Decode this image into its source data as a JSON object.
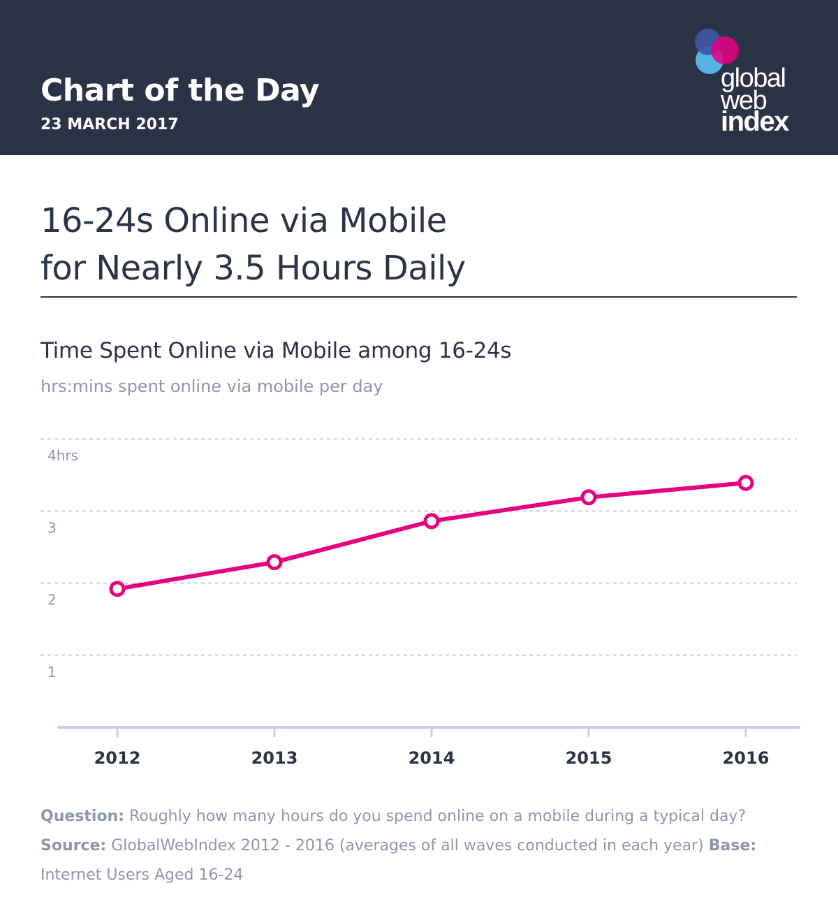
{
  "header": {
    "title": "Chart of the Day",
    "date": "23 MARCH 2017",
    "logo_lines": [
      "global",
      "web",
      "index"
    ],
    "background": "#2a3446"
  },
  "headline": {
    "line1": "16-24s Online via Mobile",
    "line2": "for Nearly 3.5 Hours Daily"
  },
  "chart_data": {
    "type": "line",
    "title": "Time Spent Online via Mobile among 16-24s",
    "subtitle": "hrs:mins spent online via mobile per day",
    "xlabel": "",
    "ylabel": "",
    "categories": [
      "2012",
      "2013",
      "2014",
      "2015",
      "2016"
    ],
    "series": [
      {
        "values": [
          1.92,
          2.29,
          2.86,
          3.19,
          3.39
        ],
        "color": "#e5007e"
      }
    ],
    "yticks": [
      1,
      2,
      3,
      4
    ],
    "ytick_labels": [
      "1",
      "2",
      "3",
      "4hrs"
    ],
    "ylim": [
      0,
      4
    ],
    "grid": true,
    "legend": "none"
  },
  "footnote": {
    "question_label": "Question:",
    "question_text": "Roughly how many hours do you spend online on a mobile during a typical day?",
    "source_label": "Source:",
    "source_text": "GlobalWebIndex 2012 - 2016 (averages of all waves conducted in each year)",
    "base_label": "Base:",
    "base_text": "Internet Users Aged 16-24"
  }
}
